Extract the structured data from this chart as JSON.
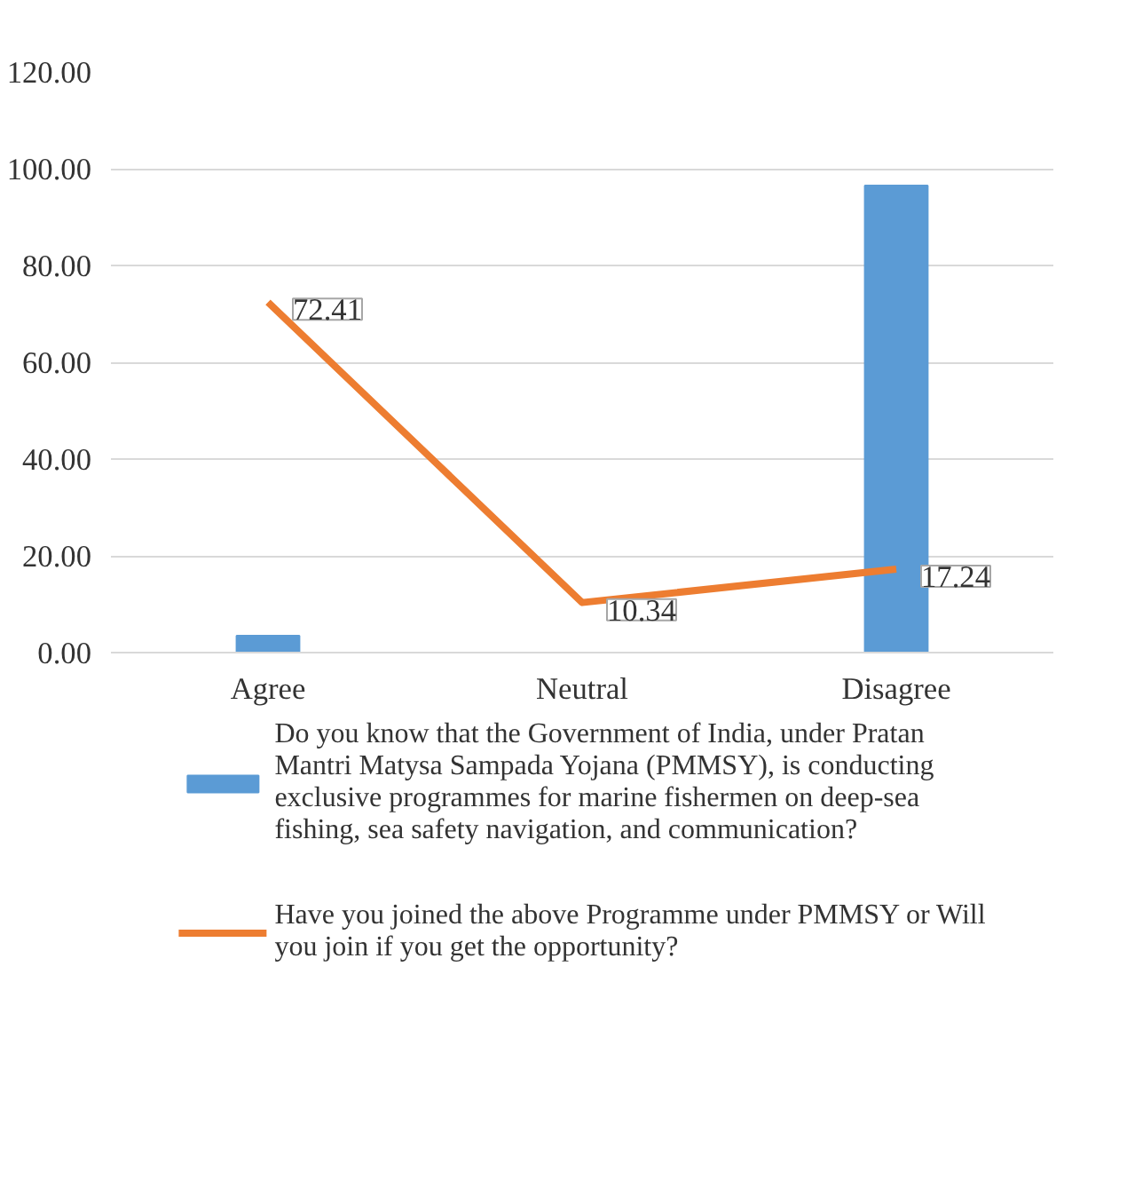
{
  "chart_data": {
    "type": "bar",
    "categories": [
      "Agree",
      "Neutral",
      "Disagree"
    ],
    "series": [
      {
        "name": "Do you know that the Government of India, under Pratan Mantri Matysa Sampada Yojana (PMMSY), is conducting exclusive programmes for marine fishermen on deep-sea fishing, sea safety navigation, and communication?",
        "color": "#5b9bd5",
        "values": [
          3.5,
          0,
          96.5
        ]
      },
      {
        "name": "Have you joined the above Programme under PMMSY or Will you join if you get the opportunity?",
        "type": "line",
        "color": "#ed7d31",
        "values": [
          72.41,
          10.34,
          17.24
        ],
        "value_labels": [
          "72.41",
          "10.34",
          "17.24"
        ]
      }
    ],
    "ylim": [
      0,
      120
    ],
    "yticks": [
      {
        "value": 0,
        "label": "0.00"
      },
      {
        "value": 20,
        "label": "20.00"
      },
      {
        "value": 40,
        "label": "40.00"
      },
      {
        "value": 60,
        "label": "60.00"
      },
      {
        "value": 80,
        "label": "80.00"
      },
      {
        "value": 100,
        "label": "100.00"
      },
      {
        "value": 120,
        "label": "120.00"
      }
    ],
    "grid": "y",
    "legend": "bottom",
    "marker": "none",
    "line_style": "solid"
  }
}
